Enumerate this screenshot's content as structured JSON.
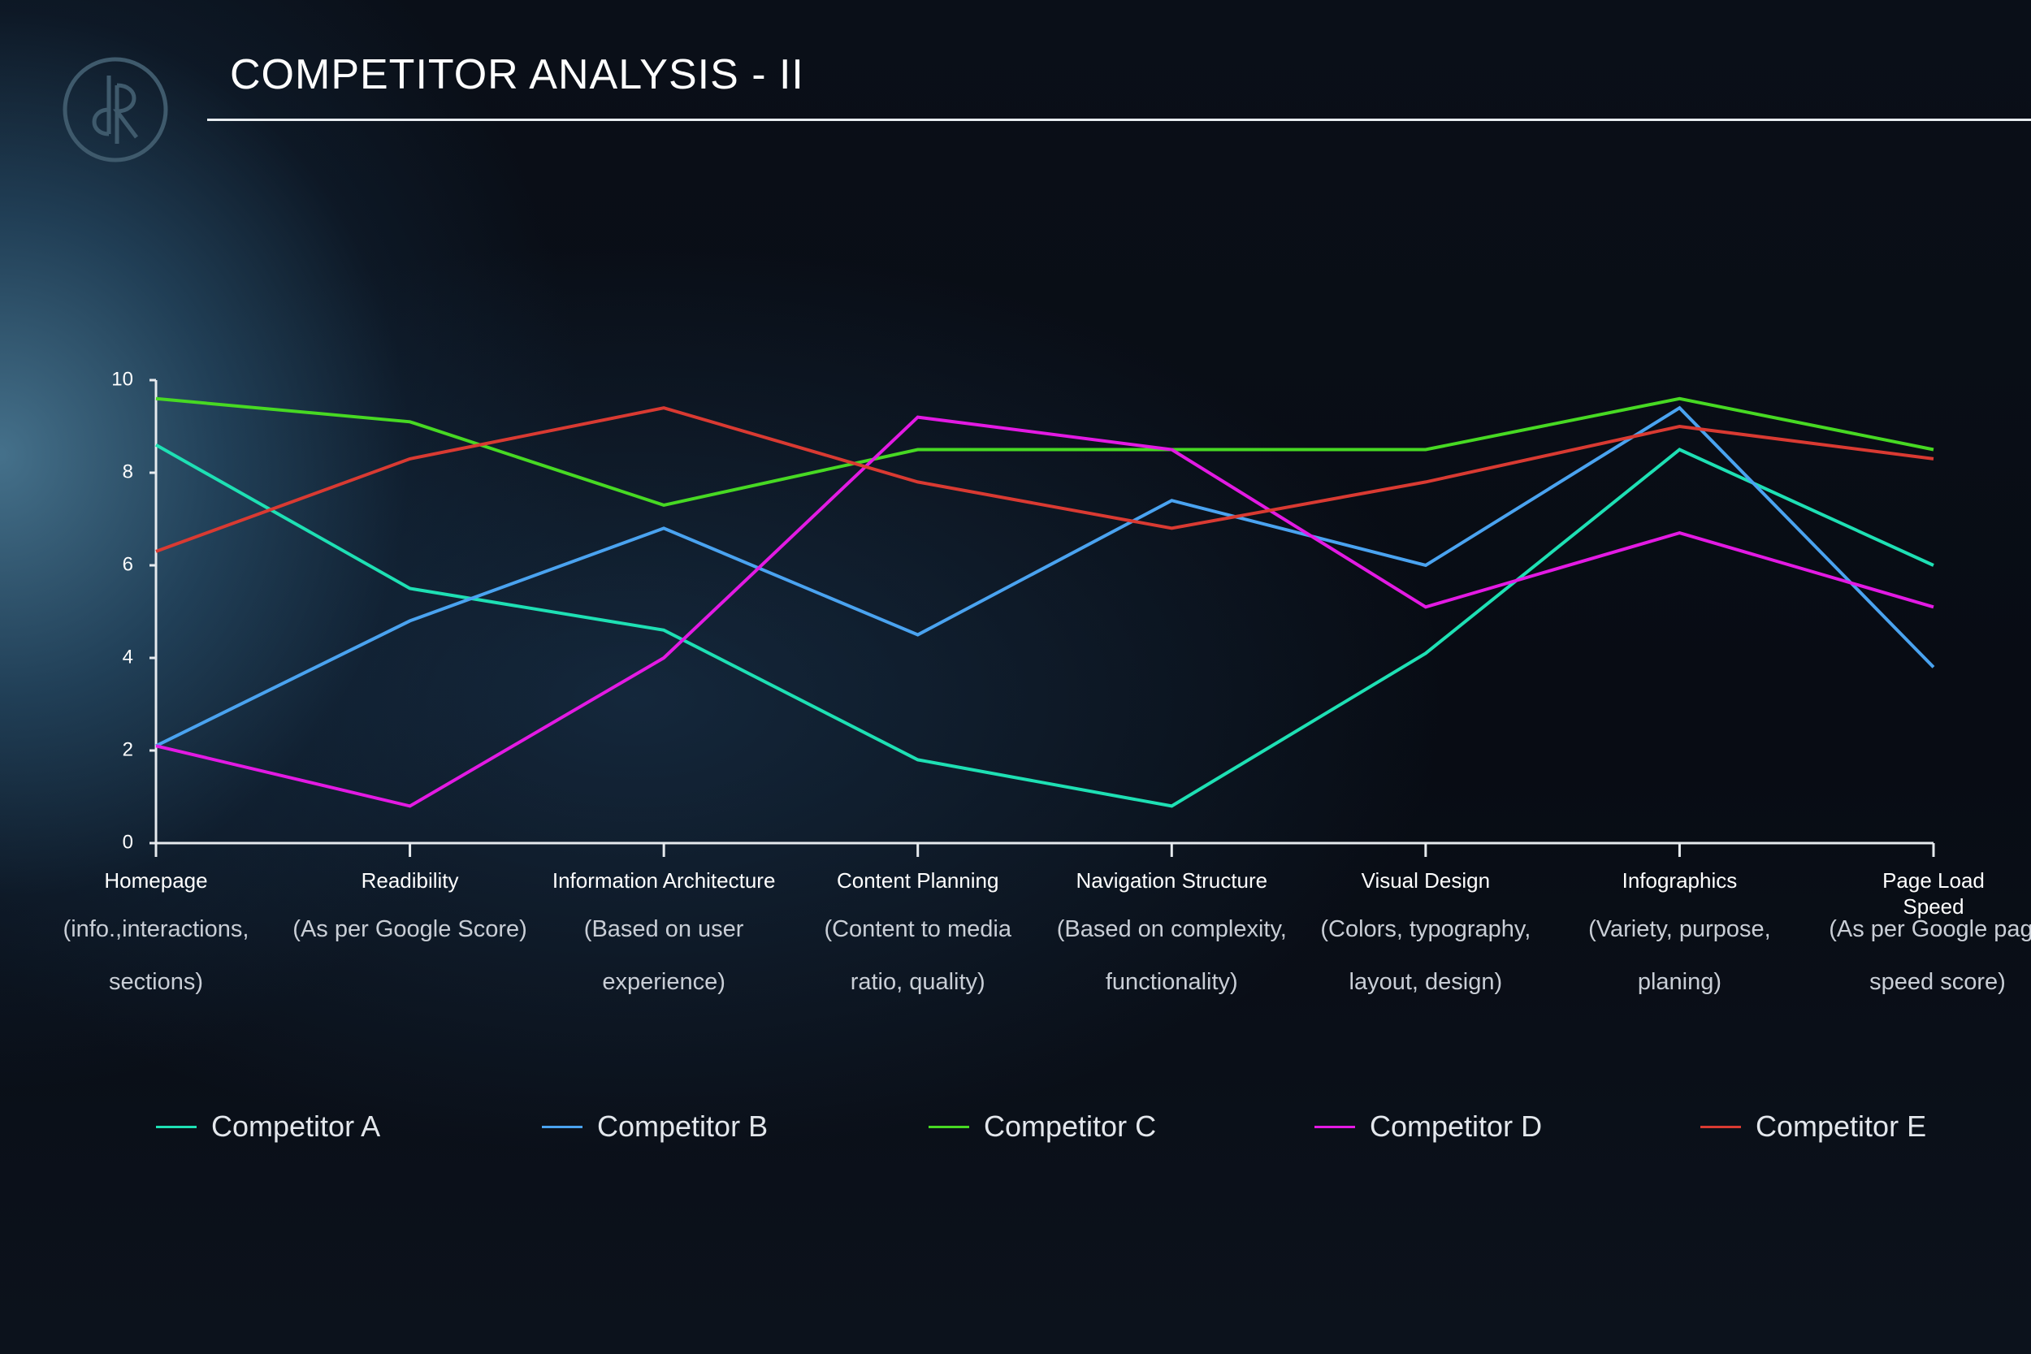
{
  "header": {
    "title": "COMPETITOR ANALYSIS - II",
    "logo_icon": "monogram-logo-icon"
  },
  "chart_data": {
    "type": "line",
    "title": "",
    "xlabel": "",
    "ylabel": "",
    "ylim": [
      0,
      10
    ],
    "yticks": [
      0,
      2,
      4,
      6,
      8,
      10
    ],
    "grid": false,
    "legend_position": "bottom",
    "categories": [
      "Homepage",
      "Readibility",
      "Information Architecture",
      "Content Planning",
      "Navigation Structure",
      "Visual Design",
      "Infographics",
      "Page Load Speed"
    ],
    "category_descriptions": [
      "(info.,interactions, sections)",
      "(As per Google Score)",
      "(Based on user experience)",
      "(Content to media ratio, quality)",
      "(Based on complexity, functionality)",
      "(Colors, typography, layout, design)",
      "(Variety, purpose, planing)",
      "(As per Google page speed score)"
    ],
    "series": [
      {
        "name": "Competitor A",
        "color": "#1ee0b4",
        "values": [
          8.6,
          5.5,
          4.6,
          1.8,
          0.8,
          4.1,
          8.5,
          6.0
        ]
      },
      {
        "name": "Competitor B",
        "color": "#4aa3f0",
        "values": [
          2.1,
          4.8,
          6.8,
          4.5,
          7.4,
          6.0,
          9.4,
          3.8
        ]
      },
      {
        "name": "Competitor C",
        "color": "#47d923",
        "values": [
          9.6,
          9.1,
          7.3,
          8.5,
          8.5,
          8.5,
          9.6,
          8.5
        ]
      },
      {
        "name": "Competitor D",
        "color": "#e31ae3",
        "values": [
          2.1,
          0.8,
          4.0,
          9.2,
          8.5,
          5.1,
          6.7,
          5.1
        ]
      },
      {
        "name": "Competitor E",
        "color": "#d93a32",
        "values": [
          6.3,
          8.3,
          9.4,
          7.8,
          6.8,
          7.8,
          9.0,
          8.3
        ]
      }
    ]
  },
  "legend": {
    "items": [
      "Competitor A",
      "Competitor B",
      "Competitor C",
      "Competitor D",
      "Competitor E"
    ]
  }
}
